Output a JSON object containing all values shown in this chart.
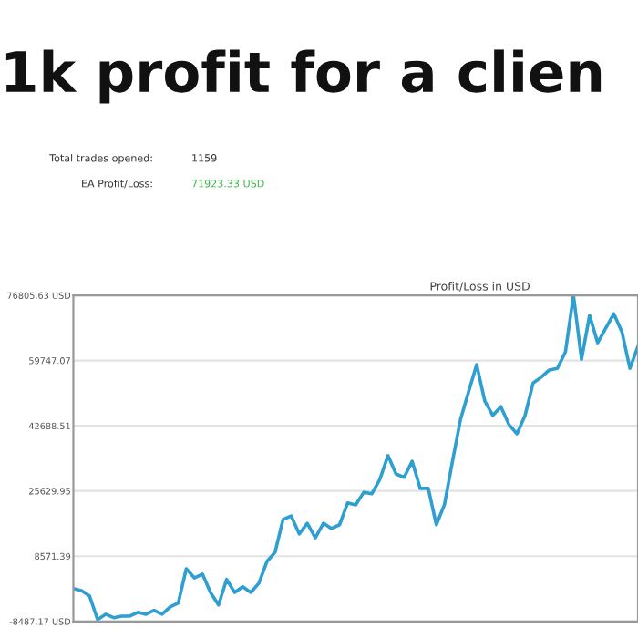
{
  "chart_data": {
    "type": "line",
    "title": "1k profit for a clien",
    "subtitle": "Profit/Loss in USD",
    "annotations": [
      "Total trades opened: 1159",
      "EA Profit/Loss: 71923.33 USD"
    ],
    "categories": [
      null,
      null,
      null,
      null,
      null,
      null,
      null,
      null,
      null,
      null,
      null,
      null,
      null,
      null,
      null,
      null,
      null,
      null,
      null,
      null,
      null,
      null,
      null,
      null,
      null,
      null,
      null,
      null,
      null,
      null,
      null,
      null,
      null,
      null,
      null,
      null,
      null,
      null,
      null,
      null,
      null,
      null,
      null,
      null,
      null,
      null,
      null,
      null,
      null,
      null,
      null,
      null,
      null,
      null,
      null,
      null,
      null,
      null,
      null,
      null,
      null,
      null,
      null,
      null,
      null,
      null,
      null,
      null,
      null,
      null,
      null
    ],
    "series": [
      {
        "color": "#2e9fd0",
        "values": [
          100,
          -400,
          -1800,
          -8000,
          -6600,
          -7500,
          -7100,
          -7100,
          -6100,
          -6600,
          -5600,
          -6600,
          -4700,
          -3700,
          5300,
          2900,
          3900,
          -900,
          -4200,
          2500,
          -900,
          600,
          -900,
          1500,
          7200,
          9600,
          18200,
          19100,
          14400,
          17200,
          13400,
          17200,
          15800,
          16800,
          22500,
          22000,
          25300,
          24900,
          28700,
          34900,
          30100,
          29200,
          33400,
          26300,
          26300,
          16800,
          22000,
          33400,
          44400,
          51600,
          58700,
          49200,
          45400,
          47700,
          43000,
          40600,
          45400,
          53900,
          55400,
          57300,
          57700,
          62000,
          76800,
          60100,
          71600,
          64400,
          68200,
          72000,
          67300,
          57700,
          63500
        ]
      }
    ],
    "ylim": [
      -8487.17,
      76805.63
    ],
    "yticks": [
      {
        "value": -8487.17,
        "label": "-8487.17 USD"
      },
      {
        "value": 8571.39,
        "label": "8571.39"
      },
      {
        "value": 25629.95,
        "label": "25629.95"
      },
      {
        "value": 42688.51,
        "label": "42688.51"
      },
      {
        "value": 59747.07,
        "label": "59747.07"
      },
      {
        "value": 76805.63,
        "label": "76805.63 USD"
      }
    ],
    "grid": "y",
    "legend": false,
    "marker": "none",
    "line_style": "solid"
  }
}
